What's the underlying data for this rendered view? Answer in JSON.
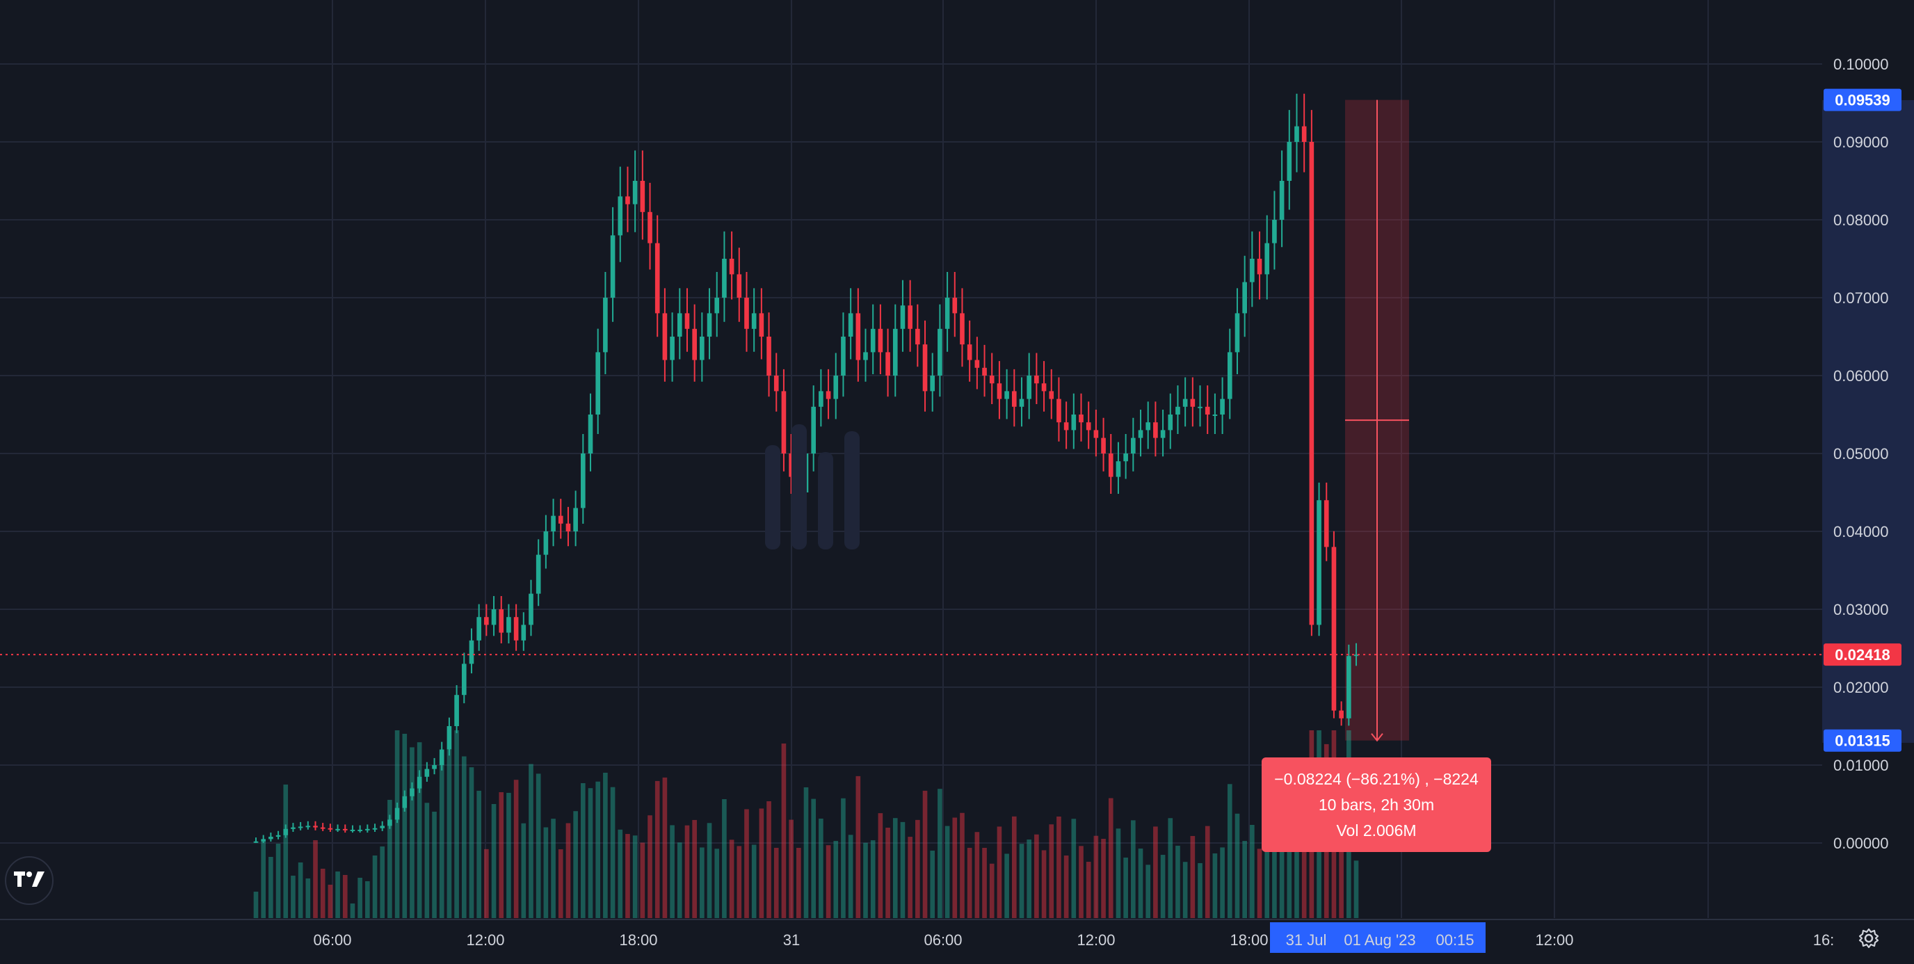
{
  "chart_data": {
    "type": "candlestick",
    "y_axis": {
      "ticks": [
        "0.10000",
        "0.09000",
        "0.08000",
        "0.07000",
        "0.06000",
        "0.05000",
        "0.04000",
        "0.03000",
        "0.02000",
        "0.01000",
        "0.00000"
      ],
      "range": [
        -0.0065,
        0.105
      ]
    },
    "x_axis": {
      "ticks": [
        "06:00",
        "12:00",
        "18:00",
        "31",
        "06:00",
        "12:00",
        "18:00",
        "06:00",
        "12:00",
        "16:"
      ]
    },
    "price_tags": {
      "high": "0.09539",
      "current": "0.02418",
      "low": "0.01315"
    },
    "current_price": 0.02418,
    "measure": {
      "from": 0.09539,
      "to": 0.01315,
      "change": "−0.08224 (−86.21%) , −8224",
      "bars": "10 bars, 2h 30m",
      "volume": "Vol 2.006M"
    },
    "time_tags": {
      "left": "31 Jul",
      "middle": "01 Aug '23",
      "right": "00:15"
    },
    "candles_close": [
      0.0002,
      0.0005,
      0.0008,
      0.001,
      0.0018,
      0.002,
      0.0021,
      0.0022,
      0.002,
      0.0019,
      0.0018,
      0.0018,
      0.0017,
      0.0017,
      0.0017,
      0.0018,
      0.0019,
      0.0022,
      0.003,
      0.0045,
      0.006,
      0.007,
      0.0085,
      0.0095,
      0.01,
      0.012,
      0.015,
      0.019,
      0.023,
      0.026,
      0.029,
      0.028,
      0.03,
      0.027,
      0.029,
      0.026,
      0.028,
      0.032,
      0.037,
      0.04,
      0.042,
      0.041,
      0.04,
      0.043,
      0.05,
      0.055,
      0.063,
      0.07,
      0.078,
      0.083,
      0.082,
      0.085,
      0.081,
      0.077,
      0.068,
      0.062,
      0.065,
      0.068,
      0.066,
      0.062,
      0.065,
      0.068,
      0.07,
      0.075,
      0.073,
      0.07,
      0.066,
      0.068,
      0.065,
      0.06,
      0.058,
      0.05,
      0.047,
      0.045,
      0.05,
      0.056,
      0.058,
      0.057,
      0.06,
      0.065,
      0.068,
      0.062,
      0.063,
      0.066,
      0.063,
      0.06,
      0.066,
      0.069,
      0.066,
      0.064,
      0.058,
      0.06,
      0.066,
      0.07,
      0.068,
      0.064,
      0.062,
      0.061,
      0.06,
      0.059,
      0.057,
      0.058,
      0.056,
      0.057,
      0.06,
      0.059,
      0.058,
      0.057,
      0.054,
      0.053,
      0.055,
      0.054,
      0.053,
      0.052,
      0.05,
      0.047,
      0.049,
      0.05,
      0.052,
      0.053,
      0.054,
      0.052,
      0.053,
      0.055,
      0.056,
      0.057,
      0.056,
      0.056,
      0.055,
      0.055,
      0.057,
      0.063,
      0.068,
      0.072,
      0.075,
      0.073,
      0.077,
      0.08,
      0.085,
      0.09,
      0.092,
      0.09,
      0.028,
      0.044,
      0.038,
      0.017,
      0.016,
      0.024,
      0.02418
    ],
    "volumes_max_label": "Vol 2.006M"
  }
}
